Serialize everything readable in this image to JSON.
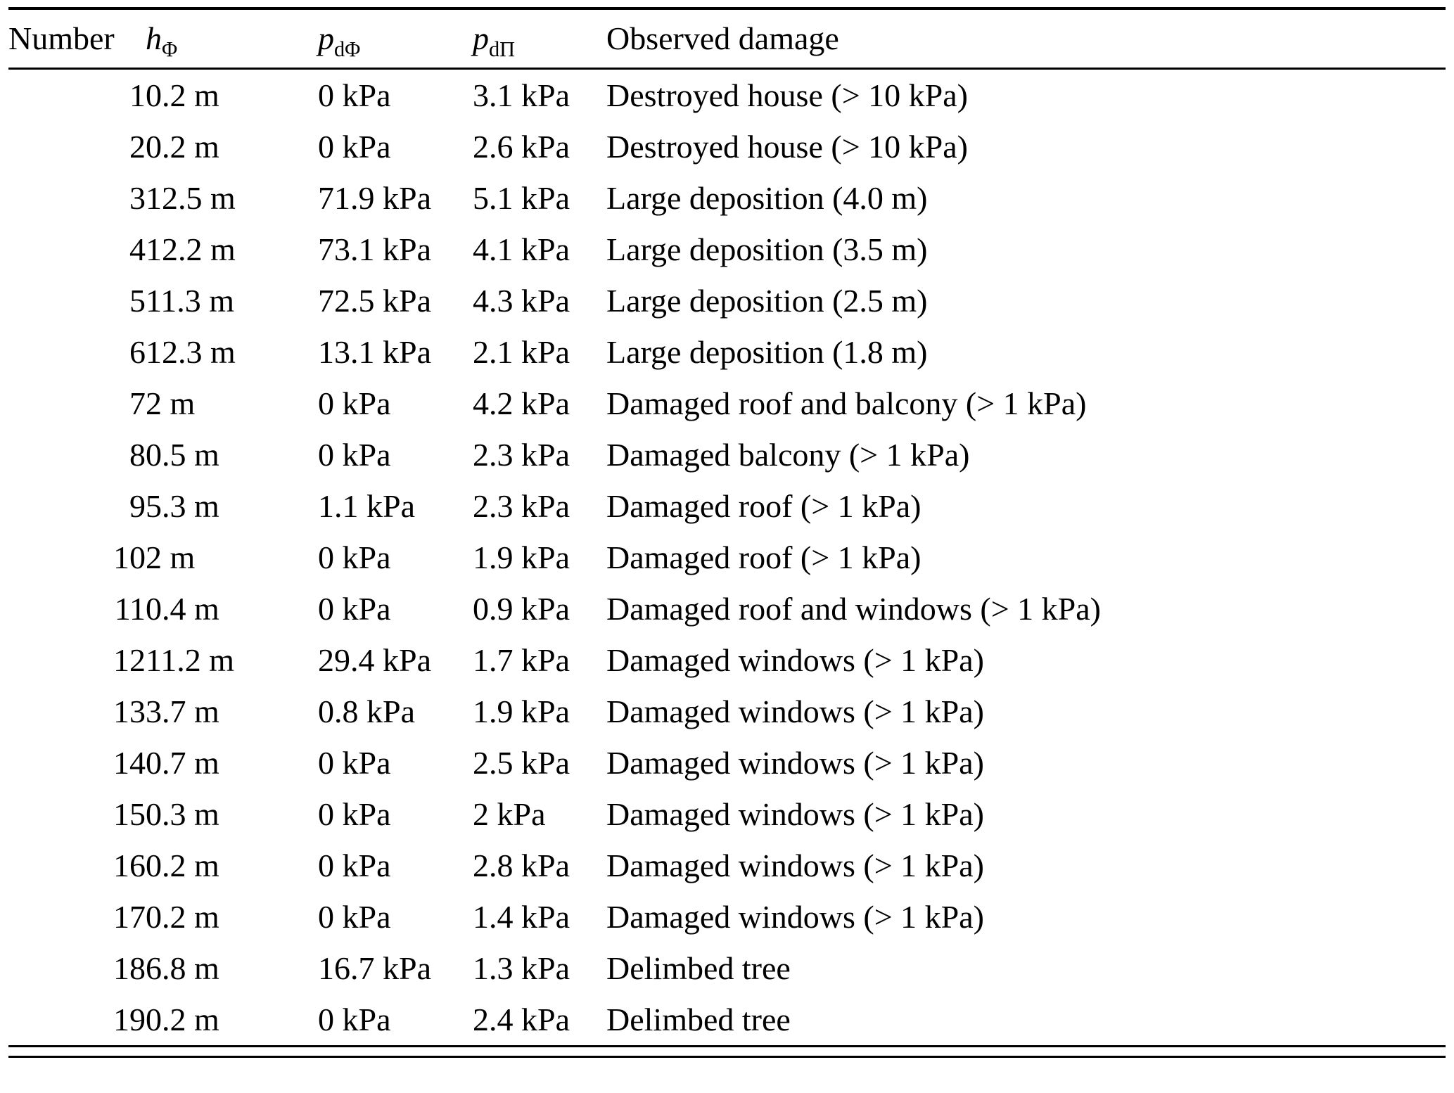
{
  "table": {
    "col_number": "Number",
    "col_h": {
      "base": "h",
      "sub": "Φ"
    },
    "col_pdphi": {
      "base": "p",
      "sub": "dΦ"
    },
    "col_pdpi": {
      "base": "p",
      "sub": "dΠ"
    },
    "col_damage": "Observed damage",
    "rows": [
      {
        "number": "1",
        "h": "0.2 m",
        "pdphi": "0 kPa",
        "pdpi": "3.1 kPa",
        "damage": "Destroyed house (> 10 kPa)"
      },
      {
        "number": "2",
        "h": "0.2 m",
        "pdphi": "0 kPa",
        "pdpi": "2.6 kPa",
        "damage": "Destroyed house (> 10 kPa)"
      },
      {
        "number": "3",
        "h": "12.5 m",
        "pdphi": "71.9 kPa",
        "pdpi": "5.1 kPa",
        "damage": "Large deposition (4.0 m)"
      },
      {
        "number": "4",
        "h": "12.2 m",
        "pdphi": "73.1 kPa",
        "pdpi": "4.1 kPa",
        "damage": "Large deposition (3.5 m)"
      },
      {
        "number": "5",
        "h": "11.3 m",
        "pdphi": "72.5 kPa",
        "pdpi": "4.3 kPa",
        "damage": "Large deposition (2.5 m)"
      },
      {
        "number": "6",
        "h": "12.3 m",
        "pdphi": "13.1 kPa",
        "pdpi": "2.1 kPa",
        "damage": "Large deposition (1.8 m)"
      },
      {
        "number": "7",
        "h": "2 m",
        "pdphi": "0 kPa",
        "pdpi": "4.2 kPa",
        "damage": "Damaged roof and balcony (> 1 kPa)"
      },
      {
        "number": "8",
        "h": "0.5 m",
        "pdphi": "0 kPa",
        "pdpi": "2.3 kPa",
        "damage": "Damaged balcony (> 1 kPa)"
      },
      {
        "number": "9",
        "h": "5.3 m",
        "pdphi": "1.1 kPa",
        "pdpi": "2.3 kPa",
        "damage": "Damaged roof (> 1 kPa)"
      },
      {
        "number": "10",
        "h": "2 m",
        "pdphi": "0 kPa",
        "pdpi": "1.9 kPa",
        "damage": "Damaged roof (> 1 kPa)"
      },
      {
        "number": "11",
        "h": "0.4 m",
        "pdphi": "0 kPa",
        "pdpi": "0.9 kPa",
        "damage": "Damaged roof and windows (> 1 kPa)"
      },
      {
        "number": "12",
        "h": "11.2 m",
        "pdphi": "29.4 kPa",
        "pdpi": "1.7 kPa",
        "damage": "Damaged windows (> 1 kPa)"
      },
      {
        "number": "13",
        "h": "3.7 m",
        "pdphi": "0.8 kPa",
        "pdpi": "1.9 kPa",
        "damage": "Damaged windows (> 1 kPa)"
      },
      {
        "number": "14",
        "h": "0.7 m",
        "pdphi": "0 kPa",
        "pdpi": "2.5 kPa",
        "damage": "Damaged windows (> 1 kPa)"
      },
      {
        "number": "15",
        "h": "0.3 m",
        "pdphi": "0 kPa",
        "pdpi": "2 kPa",
        "damage": "Damaged windows (> 1 kPa)"
      },
      {
        "number": "16",
        "h": "0.2 m",
        "pdphi": "0 kPa",
        "pdpi": "2.8 kPa",
        "damage": "Damaged windows (> 1 kPa)"
      },
      {
        "number": "17",
        "h": "0.2 m",
        "pdphi": "0 kPa",
        "pdpi": "1.4 kPa",
        "damage": "Damaged windows (> 1 kPa)"
      },
      {
        "number": "18",
        "h": "6.8 m",
        "pdphi": "16.7 kPa",
        "pdpi": "1.3 kPa",
        "damage": "Delimbed tree"
      },
      {
        "number": "19",
        "h": "0.2 m",
        "pdphi": "0 kPa",
        "pdpi": "2.4 kPa",
        "damage": "Delimbed tree"
      }
    ]
  }
}
